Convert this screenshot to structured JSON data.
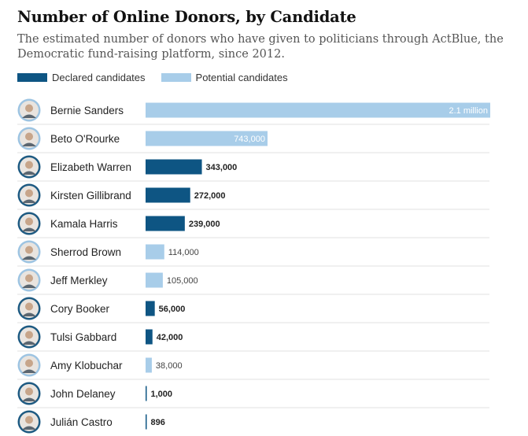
{
  "header": {
    "title": "Number of Online Donors, by Candidate",
    "subtitle": "The estimated number of donors who have given to politicians through ActBlue, the Democratic fund-raising platform, since 2012."
  },
  "legend": {
    "declared_label": "Declared candidates",
    "potential_label": "Potential candidates"
  },
  "colors": {
    "declared": "#0e5583",
    "potential": "#a8cde9",
    "avatar_ring": "#1d5a82",
    "avatar_ring_light": "#9dc4e2"
  },
  "chart_data": {
    "type": "bar",
    "title": "Number of Online Donors, by Candidate",
    "subtitle": "The estimated number of donors who have given to politicians through ActBlue, the Democratic fund-raising platform, since 2012.",
    "categories": [
      "Bernie Sanders",
      "Beto O'Rourke",
      "Elizabeth Warren",
      "Kirsten Gillibrand",
      "Kamala Harris",
      "Sherrod Brown",
      "Jeff Merkley",
      "Cory Booker",
      "Tulsi Gabbard",
      "Amy Klobuchar",
      "John Delaney",
      "Julián Castro"
    ],
    "values": [
      2100000,
      743000,
      343000,
      272000,
      239000,
      114000,
      105000,
      56000,
      42000,
      38000,
      1000,
      896
    ],
    "value_labels": [
      "2.1 million",
      "743,000",
      "343,000",
      "272,000",
      "239,000",
      "114,000",
      "105,000",
      "56,000",
      "42,000",
      "38,000",
      "1,000",
      "896"
    ],
    "status": [
      "potential",
      "potential",
      "declared",
      "declared",
      "declared",
      "potential",
      "potential",
      "declared",
      "declared",
      "potential",
      "declared",
      "declared"
    ],
    "legend": [
      "Declared candidates",
      "Potential candidates"
    ],
    "legend_position": "top-left",
    "xlabel": "",
    "ylabel": "",
    "xlim": [
      0,
      2100000
    ],
    "grid": false
  }
}
